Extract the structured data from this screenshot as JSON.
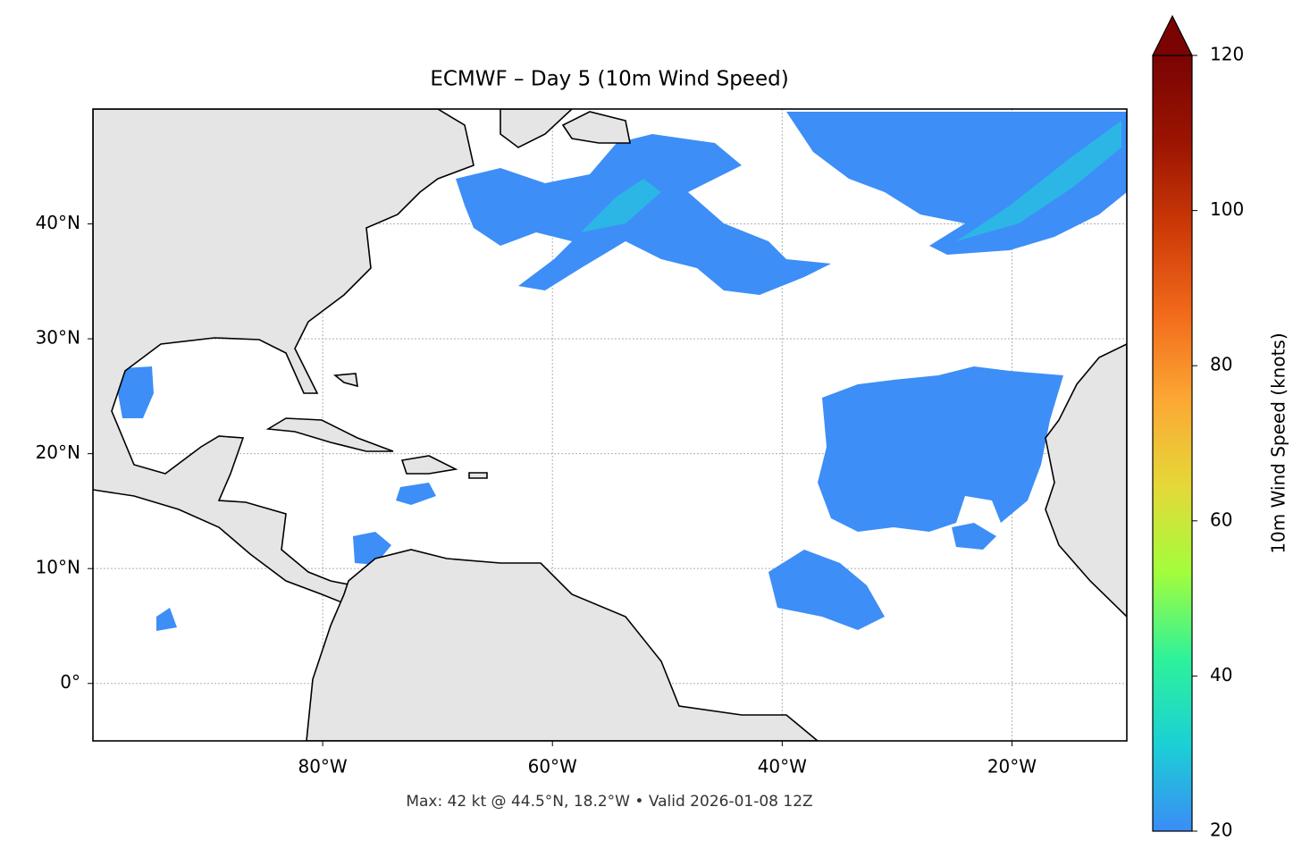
{
  "chart_data": {
    "type": "map",
    "title": "ECMWF – Day 5 (10m Wind Speed)",
    "annotation": "Max: 42 kt @ 44.5°N, 18.2°W • Valid 2026-01-08 12Z",
    "xlim": [
      -100,
      -10
    ],
    "ylim": [
      -5,
      50
    ],
    "xticks": [
      {
        "value": -80,
        "label": "80°W"
      },
      {
        "value": -60,
        "label": "60°W"
      },
      {
        "value": -40,
        "label": "40°W"
      },
      {
        "value": -20,
        "label": "20°W"
      }
    ],
    "yticks": [
      {
        "value": 0,
        "label": "0°"
      },
      {
        "value": 10,
        "label": "10°N"
      },
      {
        "value": 20,
        "label": "20°N"
      },
      {
        "value": 30,
        "label": "30°N"
      },
      {
        "value": 40,
        "label": "40°N"
      }
    ],
    "grid": true,
    "colorbar": {
      "label": "10m Wind Speed (knots)",
      "lim": [
        20,
        120
      ],
      "ticks": [
        20,
        40,
        60,
        80,
        100,
        120
      ],
      "extend": "max",
      "colors": [
        "#3b8cf6",
        "#1bd0d5",
        "#2ef29a",
        "#a3fd3c",
        "#e5d838",
        "#fca834",
        "#f26a1b",
        "#cd3a07",
        "#9b1402",
        "#7a0403"
      ]
    }
  }
}
